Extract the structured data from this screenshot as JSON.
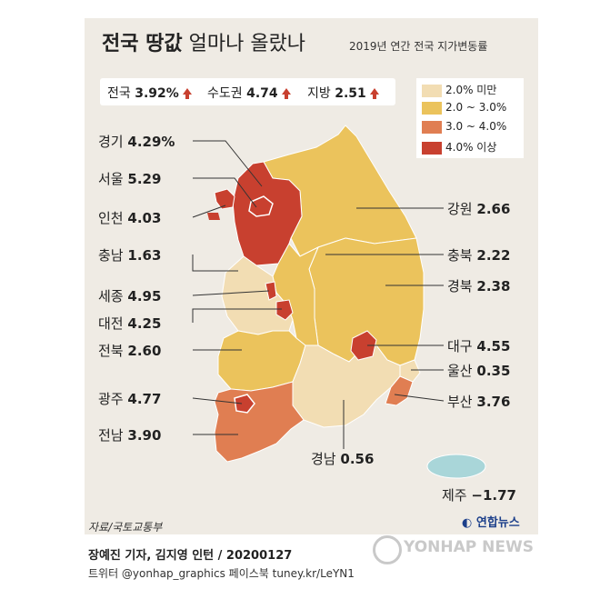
{
  "title_bold": "전국 땅값",
  "title_rest": " 얼마나 올랐나",
  "subtitle": "2019년 연간 전국 지가변동률",
  "national": [
    {
      "label": "전국",
      "value": "3.92%"
    },
    {
      "label": "수도권",
      "value": "4.74"
    },
    {
      "label": "지방",
      "value": "2.51"
    }
  ],
  "legend": [
    {
      "label": "2.0% 미만",
      "color": "#f2ddb3"
    },
    {
      "label": "2.0 ~ 3.0%",
      "color": "#ebc35c"
    },
    {
      "label": "3.0 ~ 4.0%",
      "color": "#e07e52"
    },
    {
      "label": "4.0% 이상",
      "color": "#c8402f"
    }
  ],
  "regions": {
    "gyeonggi": {
      "name": "경기",
      "value": "4.29%"
    },
    "seoul": {
      "name": "서울",
      "value": "5.29"
    },
    "incheon": {
      "name": "인천",
      "value": "4.03"
    },
    "chungnam": {
      "name": "충남",
      "value": "1.63"
    },
    "sejong": {
      "name": "세종",
      "value": "4.95"
    },
    "daejeon": {
      "name": "대전",
      "value": "4.25"
    },
    "jeonbuk": {
      "name": "전북",
      "value": "2.60"
    },
    "gwangju": {
      "name": "광주",
      "value": "4.77"
    },
    "jeonnam": {
      "name": "전남",
      "value": "3.90"
    },
    "gangwon": {
      "name": "강원",
      "value": "2.66"
    },
    "chungbuk": {
      "name": "충북",
      "value": "2.22"
    },
    "gyeongbuk": {
      "name": "경북",
      "value": "2.38"
    },
    "daegu": {
      "name": "대구",
      "value": "4.55"
    },
    "ulsan": {
      "name": "울산",
      "value": "0.35"
    },
    "busan": {
      "name": "부산",
      "value": "3.76"
    },
    "gyeongnam": {
      "name": "경남",
      "value": "0.56"
    },
    "jeju": {
      "name": "제주",
      "value": "−1.77"
    }
  },
  "source": "자료/국토교통부",
  "logo": "연합뉴스",
  "credit_line1": "장예진 기자, 김지영 인턴 / 20200127",
  "credit_line2": "트위터 @yonhap_graphics  페이스북 tuney.kr/LeYN1",
  "watermark": "YONHAP NEWS",
  "colors": {
    "panel": "#efebe4",
    "arrow": "#c8402f"
  }
}
